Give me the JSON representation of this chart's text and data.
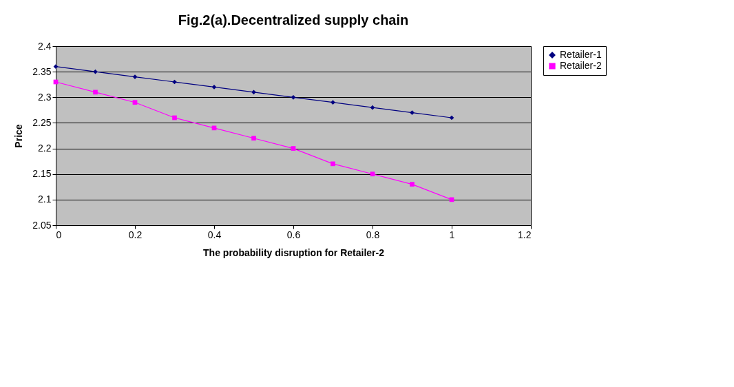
{
  "chart_data": {
    "type": "line",
    "title": "Fig.2(a).Decentralized supply chain",
    "xlabel": "The probability disruption for Retailer-2",
    "ylabel": "Price",
    "x": [
      0,
      0.1,
      0.2,
      0.3,
      0.4,
      0.5,
      0.6,
      0.7,
      0.8,
      0.9,
      1
    ],
    "series": [
      {
        "name": "Retailer-1",
        "color": "#000080",
        "marker": "diamond",
        "values": [
          2.36,
          2.35,
          2.34,
          2.33,
          2.32,
          2.31,
          2.3,
          2.29,
          2.28,
          2.27,
          2.26
        ]
      },
      {
        "name": "Retailer-2",
        "color": "#ff00ff",
        "marker": "square",
        "values": [
          2.33,
          2.31,
          2.29,
          2.26,
          2.24,
          2.22,
          2.2,
          2.17,
          2.15,
          2.13,
          2.1
        ]
      }
    ],
    "xlim": [
      0,
      1.2
    ],
    "xticks": [
      0,
      0.2,
      0.4,
      0.6,
      0.8,
      1,
      1.2
    ],
    "ylim": [
      2.05,
      2.4
    ],
    "yticks": [
      2.05,
      2.1,
      2.15,
      2.2,
      2.25,
      2.3,
      2.35,
      2.4
    ],
    "grid": "y",
    "legend": "right",
    "line_style": "solid"
  }
}
